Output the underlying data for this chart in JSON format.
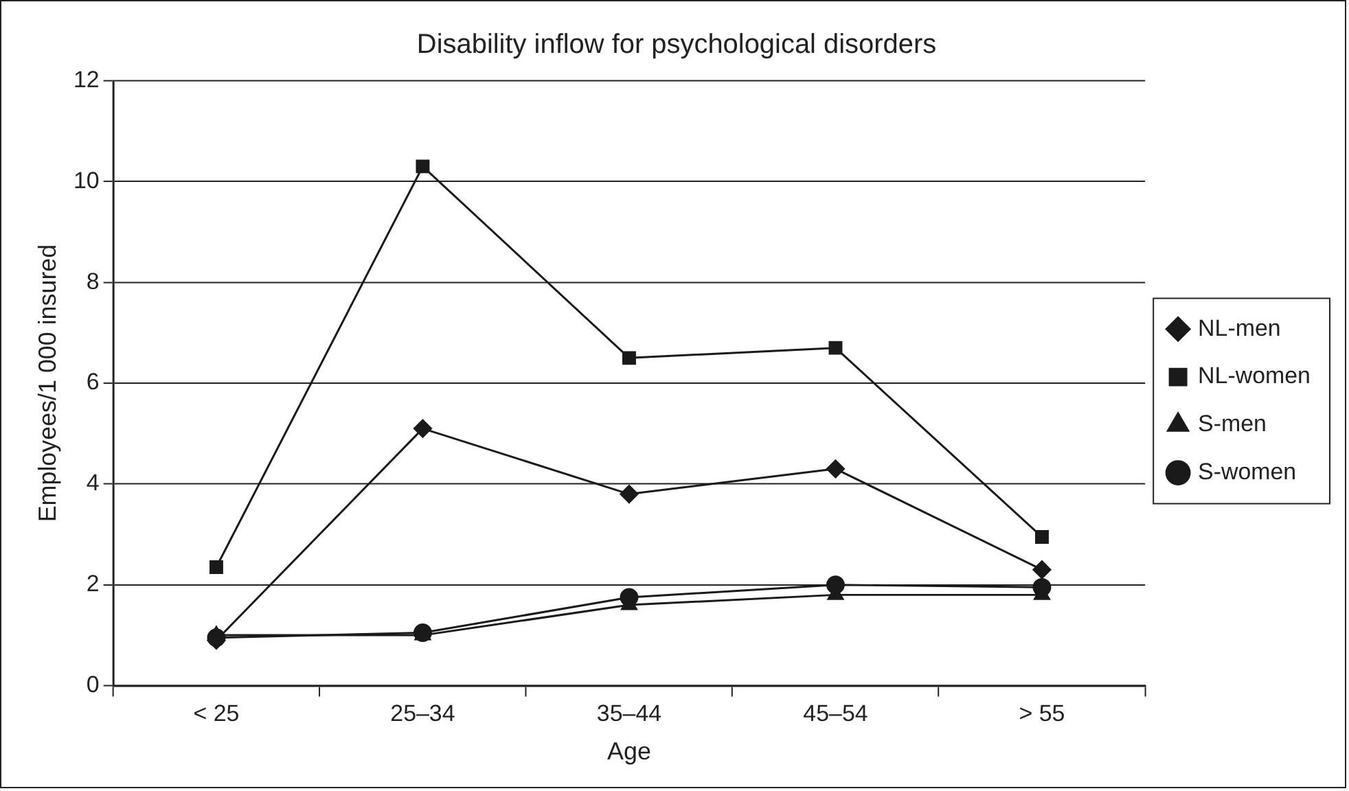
{
  "chart_data": {
    "type": "line",
    "title": "Disability inflow for psychological disorders",
    "xlabel": "Age",
    "ylabel": "Employees/1 000 insured",
    "categories": [
      "< 25",
      "25–34",
      "35–44",
      "45–54",
      "> 55"
    ],
    "series": [
      {
        "name": "NL-men",
        "color": "#1a1a1a",
        "marker": "diamond",
        "values": [
          0.9,
          5.1,
          3.8,
          4.3,
          2.3
        ]
      },
      {
        "name": "NL-women",
        "color": "#1a1a1a",
        "marker": "square",
        "values": [
          2.35,
          10.3,
          6.5,
          6.7,
          2.95
        ]
      },
      {
        "name": "S-men",
        "color": "#1a1a1a",
        "marker": "triangle",
        "values": [
          1.0,
          1.0,
          1.6,
          1.8,
          1.8
        ]
      },
      {
        "name": "S-women",
        "color": "#1a1a1a",
        "marker": "circle",
        "values": [
          0.95,
          1.05,
          1.75,
          2.0,
          1.95
        ]
      }
    ],
    "ylim": [
      0,
      12
    ],
    "yticks": [
      0,
      2,
      4,
      6,
      8,
      10,
      12
    ],
    "grid": "y",
    "legend": "right",
    "line_style": "solid"
  }
}
